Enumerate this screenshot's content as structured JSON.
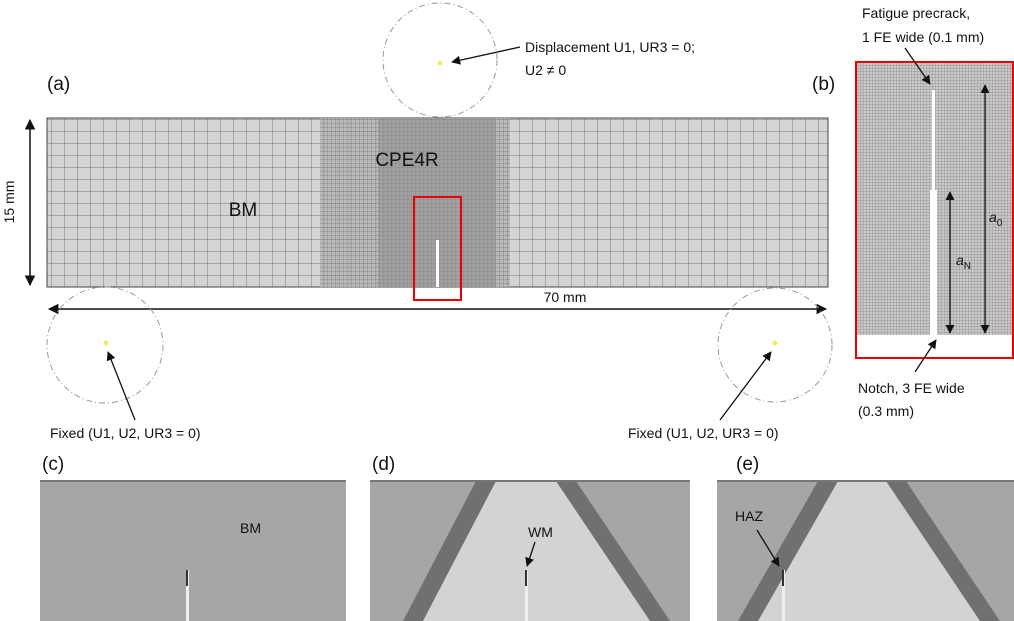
{
  "panels": {
    "a": "(a)",
    "b": "(b)",
    "c": "(c)",
    "d": "(d)",
    "e": "(e)"
  },
  "panel_a": {
    "top_bc": [
      "Displacement U1, UR3 = 0;",
      "U2 ≠ 0"
    ],
    "element_type": "CPE4R",
    "base_metal": "BM",
    "height": "15 mm",
    "length": "70 mm",
    "left_bc": "Fixed (U1, U2, UR3 = 0)",
    "right_bc": "Fixed (U1, U2, UR3 = 0)"
  },
  "panel_b": {
    "precrack": [
      "Fatigue precrack,",
      "1 FE wide (0.1 mm)"
    ],
    "notch": [
      "Notch, 3 FE wide",
      "(0.3 mm)"
    ],
    "a0": {
      "symbol": "a",
      "subscript": "0"
    },
    "aN": {
      "symbol": "a",
      "subscript": "N"
    }
  },
  "panel_c": {
    "label": "BM"
  },
  "panel_d": {
    "label": "WM"
  },
  "panel_e": {
    "label": "HAZ"
  }
}
